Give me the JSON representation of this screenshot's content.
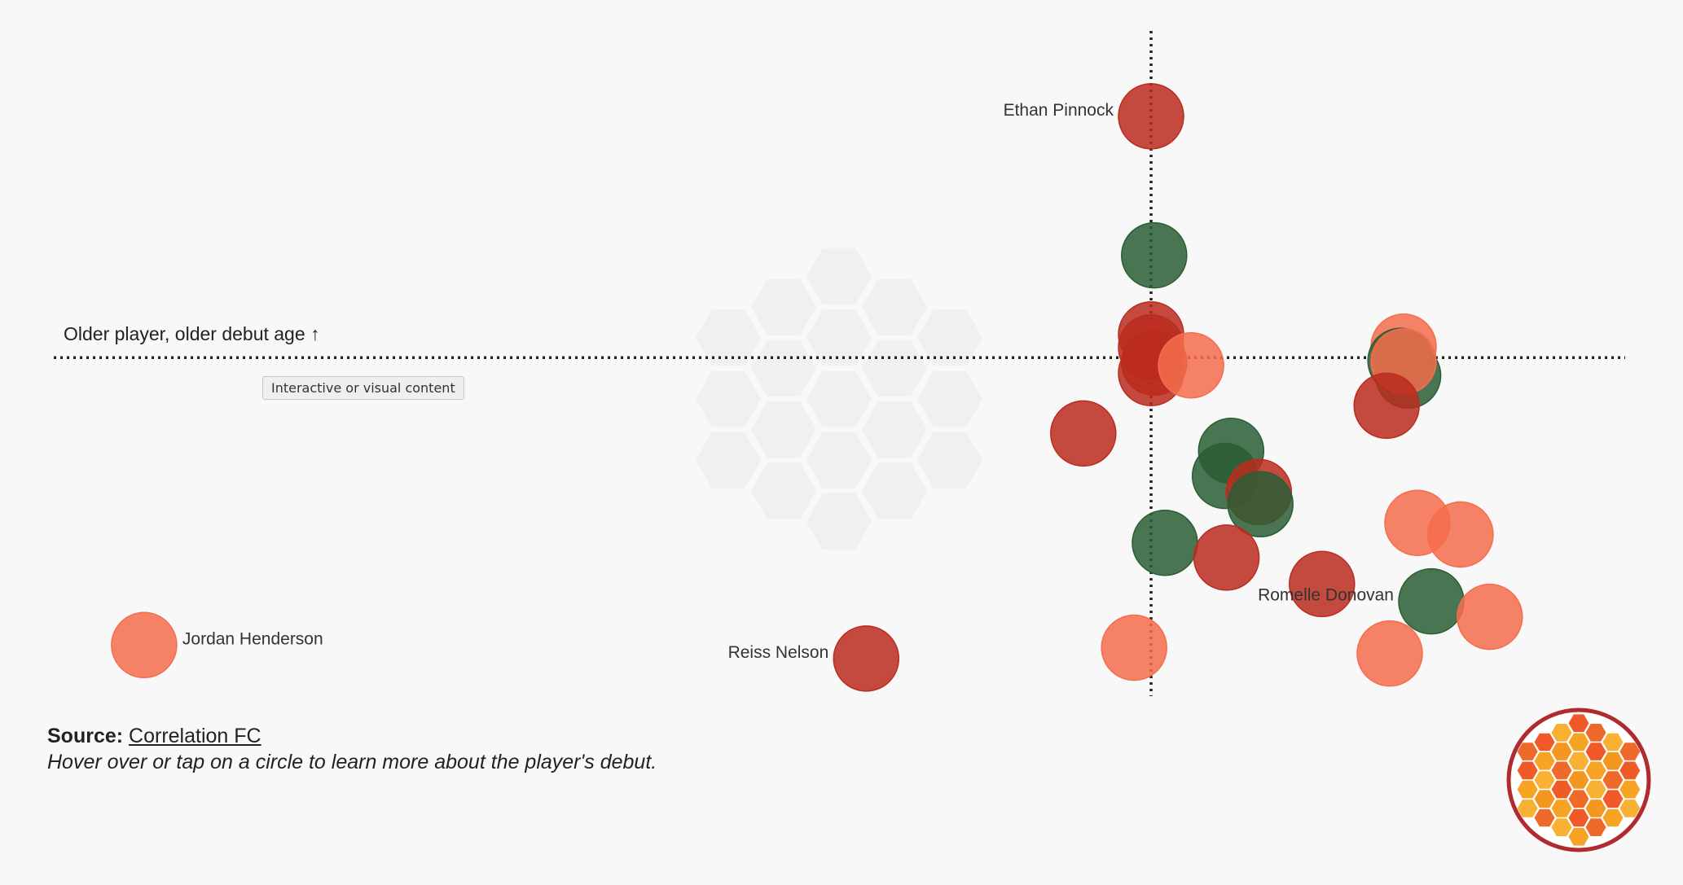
{
  "tooltip": "Interactive or visual content",
  "footer": {
    "source_label": "Source:",
    "source_link": "Correlation FC",
    "note": "Hover over or tap on a circle to learn more about the player's debut."
  },
  "colors": {
    "orange": "#f46d4e",
    "red": "#bb2c1f",
    "green": "#2a5e35",
    "ring": "#b02a30"
  },
  "chart_data": {
    "type": "scatter",
    "title": "",
    "xlabel": "",
    "ylabel": "Older player, older debut age ↑",
    "xlim": [
      0,
      100
    ],
    "ylim": [
      0,
      100
    ],
    "grid": false,
    "reference_lines": {
      "x": 70,
      "y": 52
    },
    "labels": {
      "jordan": "Jordan Henderson",
      "reiss": "Reiss Nelson",
      "ethan": "Ethan Pinnock",
      "romelle": "Romelle Donovan"
    },
    "points": [
      {
        "x": 4.6,
        "y": 7.3,
        "color": "orange",
        "label": "jordan",
        "label_side": "right"
      },
      {
        "x": 51.5,
        "y": 5.2,
        "color": "red",
        "label": "reiss",
        "label_side": "left"
      },
      {
        "x": 70.0,
        "y": 89.5,
        "color": "red",
        "label": "ethan",
        "label_side": "left"
      },
      {
        "x": 70.2,
        "y": 67.9,
        "color": "green"
      },
      {
        "x": 70.0,
        "y": 55.6,
        "color": "red"
      },
      {
        "x": 70.0,
        "y": 53.6,
        "color": "red"
      },
      {
        "x": 70.2,
        "y": 51.2,
        "color": "red"
      },
      {
        "x": 70.0,
        "y": 49.6,
        "color": "red"
      },
      {
        "x": 72.6,
        "y": 50.8,
        "color": "orange"
      },
      {
        "x": 65.6,
        "y": 40.2,
        "color": "red"
      },
      {
        "x": 75.2,
        "y": 37.5,
        "color": "green"
      },
      {
        "x": 74.8,
        "y": 33.6,
        "color": "green"
      },
      {
        "x": 77.0,
        "y": 31.1,
        "color": "red"
      },
      {
        "x": 77.1,
        "y": 29.2,
        "color": "green"
      },
      {
        "x": 70.9,
        "y": 23.2,
        "color": "green"
      },
      {
        "x": 74.9,
        "y": 20.9,
        "color": "red"
      },
      {
        "x": 68.9,
        "y": 6.9,
        "color": "orange"
      },
      {
        "x": 81.1,
        "y": 16.8,
        "color": "red"
      },
      {
        "x": 86.4,
        "y": 53.7,
        "color": "orange"
      },
      {
        "x": 86.2,
        "y": 51.5,
        "color": "green"
      },
      {
        "x": 86.7,
        "y": 49.2,
        "color": "green"
      },
      {
        "x": 86.4,
        "y": 51.4,
        "color": "orange"
      },
      {
        "x": 85.3,
        "y": 44.5,
        "color": "red"
      },
      {
        "x": 87.3,
        "y": 26.3,
        "color": "orange"
      },
      {
        "x": 90.1,
        "y": 24.5,
        "color": "orange"
      },
      {
        "x": 88.2,
        "y": 14.1,
        "color": "green",
        "label": "romelle",
        "label_side": "left"
      },
      {
        "x": 92.0,
        "y": 11.7,
        "color": "orange"
      },
      {
        "x": 85.5,
        "y": 6.0,
        "color": "orange"
      }
    ]
  }
}
